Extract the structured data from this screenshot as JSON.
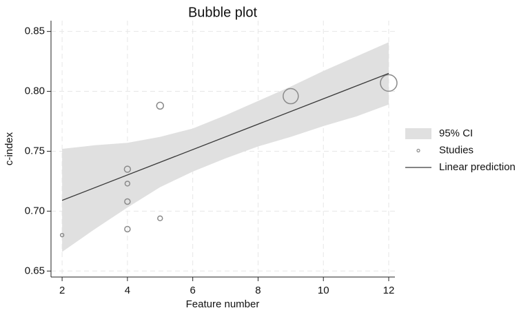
{
  "chart_data": {
    "type": "bubble",
    "title": "Bubble plot",
    "x_label": "Feature number",
    "y_label": "c-index",
    "xlim": [
      1.66,
      12.19
    ],
    "ylim": [
      0.645,
      0.859
    ],
    "xticks": [
      2,
      4,
      6,
      8,
      10,
      12
    ],
    "yticks": [
      0.65,
      {
        "value": 0.7,
        "label": "0.70"
      },
      0.75,
      {
        "value": 0.8,
        "label": "0.80"
      },
      0.85
    ],
    "grid": true,
    "legend": "right",
    "series": [
      {
        "name": "95% CI",
        "kind": "band",
        "color": "#e0e0e0",
        "x": [
          2,
          3,
          4,
          5,
          6,
          7,
          8,
          9,
          10,
          11,
          12
        ],
        "lower": [
          0.666,
          0.685,
          0.703,
          0.72,
          0.733,
          0.744,
          0.754,
          0.762,
          0.771,
          0.779,
          0.789
        ],
        "upper": [
          0.752,
          0.755,
          0.757,
          0.762,
          0.769,
          0.78,
          0.792,
          0.804,
          0.817,
          0.829,
          0.841
        ]
      },
      {
        "name": "Studies",
        "kind": "bubble",
        "color": "#8a8a8a",
        "x": [
          2,
          4,
          4,
          4,
          4,
          5,
          5,
          9,
          12
        ],
        "values": [
          0.68,
          0.735,
          0.723,
          0.708,
          0.685,
          0.788,
          0.694,
          0.796,
          0.807
        ],
        "sizes": [
          6,
          20,
          12,
          16,
          16,
          25,
          12,
          121,
          144
        ]
      },
      {
        "name": "Linear prediction",
        "kind": "line",
        "color": "#3a3a3a",
        "x": [
          2,
          12
        ],
        "values": [
          0.709,
          0.815
        ]
      }
    ]
  }
}
